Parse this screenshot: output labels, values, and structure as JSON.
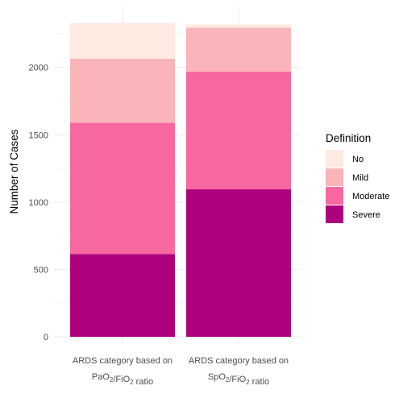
{
  "chart_data": {
    "type": "bar",
    "stacked": true,
    "categories": [
      {
        "line1": "ARDS category based on",
        "line2": [
          {
            "t": "PaO"
          },
          {
            "t": "2",
            "sub": true
          },
          {
            "t": "/FiO"
          },
          {
            "t": "2",
            "sub": true
          },
          {
            "t": " ratio"
          }
        ]
      },
      {
        "line1": "ARDS category based on",
        "line2": [
          {
            "t": "SpO"
          },
          {
            "t": "2",
            "sub": true
          },
          {
            "t": "/FiO"
          },
          {
            "t": "2",
            "sub": true
          },
          {
            "t": " ratio"
          }
        ]
      }
    ],
    "series": [
      {
        "name": "Severe",
        "color": "#AE017E",
        "values": [
          615,
          1095
        ]
      },
      {
        "name": "Moderate",
        "color": "#F768A1",
        "values": [
          975,
          875
        ]
      },
      {
        "name": "Mild",
        "color": "#FBB4B9",
        "values": [
          475,
          325
        ]
      },
      {
        "name": "No",
        "color": "#FDEAE0",
        "values": [
          265,
          25
        ]
      }
    ],
    "ylabel": "Number of Cases",
    "xlabel": "",
    "ylim": [
      0,
      2380
    ],
    "yticks": [
      0,
      500,
      1000,
      1500,
      2000
    ],
    "grid": true,
    "legend": {
      "title": "Definition",
      "position": "right",
      "order": [
        "No",
        "Mild",
        "Moderate",
        "Severe"
      ]
    }
  }
}
